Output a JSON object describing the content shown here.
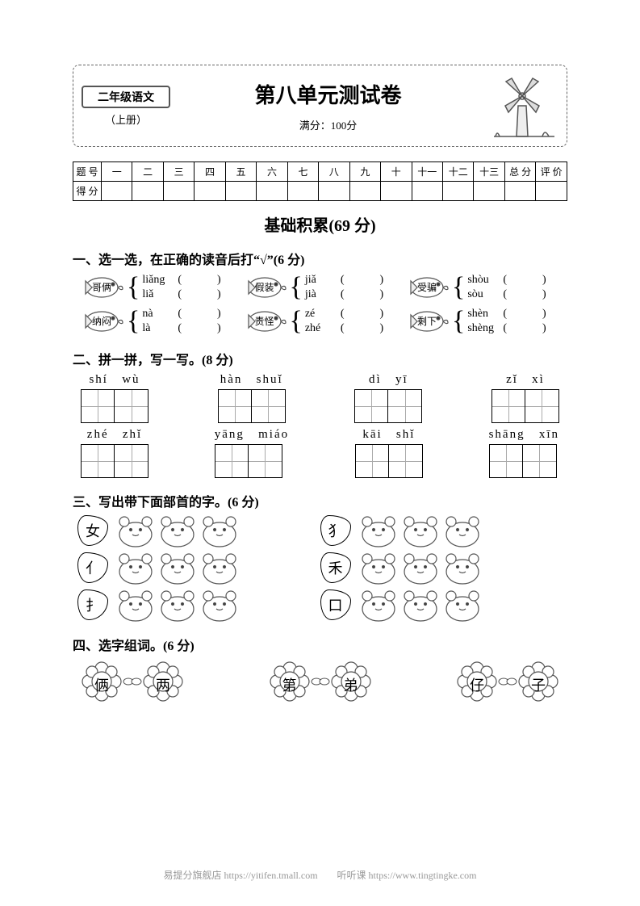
{
  "colors": {
    "fg": "#000000",
    "bg": "#ffffff",
    "dashed": "#666666",
    "illus": "#555555",
    "line": "#808080",
    "footer": "#999999"
  },
  "header": {
    "grade_subject": "二年级语文",
    "booklet": "（上册）",
    "title": "第八单元测试卷",
    "full_score": "满分：100分"
  },
  "score_table": {
    "row1_label": "题 号",
    "cols": [
      "一",
      "二",
      "三",
      "四",
      "五",
      "六",
      "七",
      "八",
      "九",
      "十",
      "十一",
      "十二",
      "十三",
      "总 分",
      "评 价"
    ],
    "row2_label": "得 分"
  },
  "section_title": "基础积累(69 分)",
  "q1": {
    "heading": "一、选一选，在正确的读音后打“√”(6 分)",
    "items": [
      {
        "word": "哥俩",
        "opts": [
          "liǎng",
          "liǎ"
        ]
      },
      {
        "word": "假装",
        "opts": [
          "jiǎ",
          "jià"
        ]
      },
      {
        "word": "受骗",
        "opts": [
          "shòu",
          "sòu"
        ]
      },
      {
        "word": "纳闷",
        "opts": [
          "nà",
          "là"
        ]
      },
      {
        "word": "责怪",
        "opts": [
          "zé",
          "zhé"
        ]
      },
      {
        "word": "剩下",
        "opts": [
          "shèn",
          "shèng"
        ]
      }
    ]
  },
  "q2": {
    "heading": "二、拼一拼，写一写。(8 分)",
    "rows": [
      [
        {
          "p1": "shí",
          "p2": "wù"
        },
        {
          "p1": "hàn",
          "p2": "shuǐ"
        },
        {
          "p1": "dì",
          "p2": "yī"
        },
        {
          "p1": "zǐ",
          "p2": "xì"
        }
      ],
      [
        {
          "p1": "zhé",
          "p2": "zhǐ"
        },
        {
          "p1": "yāng",
          "p2": "miáo"
        },
        {
          "p1": "kāi",
          "p2": "shǐ"
        },
        {
          "p1": "shāng",
          "p2": "xīn"
        }
      ]
    ]
  },
  "q3": {
    "heading": "三、写出带下面部首的字。(6 分)",
    "radicals_left": [
      "女",
      "亻",
      "扌"
    ],
    "radicals_right": [
      "犭",
      "禾",
      "口"
    ],
    "hamster_count": 3
  },
  "q4": {
    "heading": "四、选字组词。(6 分)",
    "pairs": [
      {
        "a": "俩",
        "b": "两"
      },
      {
        "a": "第",
        "b": "弟"
      },
      {
        "a": "仔",
        "b": "子"
      }
    ]
  },
  "footer": {
    "left": "易提分旗舰店  https://yitifen.tmall.com",
    "right": "听听课  https://www.tingtingke.com"
  }
}
